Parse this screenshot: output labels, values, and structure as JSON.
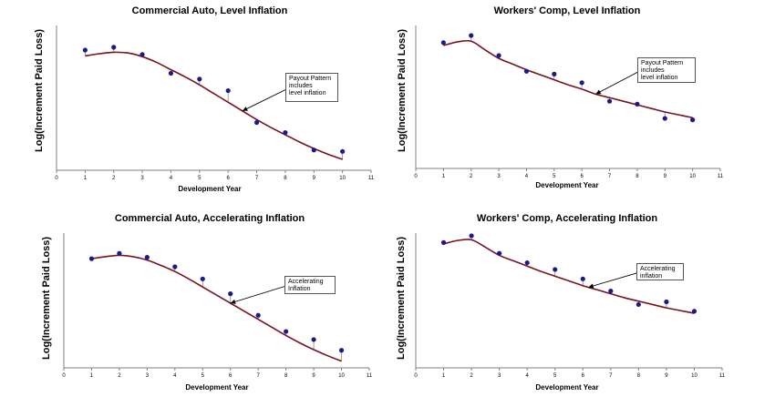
{
  "chart_data": [
    {
      "type": "line",
      "title": "Commercial Auto, Level Inflation",
      "xlabel": "Development Year",
      "ylabel": "Log(Increment Paid Loss)",
      "xlim": [
        0,
        11
      ],
      "ylim": [
        0,
        10
      ],
      "x_ticks": [
        "0",
        "1",
        "2",
        "3",
        "4",
        "5",
        "6",
        "7",
        "8",
        "9",
        "10",
        "11"
      ],
      "series": [
        {
          "role": "actual",
          "x": [
            1,
            2,
            3,
            4,
            5,
            6,
            7,
            8,
            9,
            10
          ],
          "values": [
            8.3,
            8.5,
            8.0,
            6.7,
            6.3,
            5.5,
            3.3,
            2.6,
            1.4,
            1.3
          ]
        },
        {
          "role": "fitted",
          "x": [
            1,
            1.5,
            2,
            2.5,
            3,
            3.5,
            4,
            4.5,
            5,
            5.5,
            6,
            6.5,
            7,
            7.5,
            8,
            8.5,
            9,
            9.5,
            10
          ],
          "values": [
            7.9,
            8.05,
            8.15,
            8.1,
            7.85,
            7.45,
            6.95,
            6.45,
            5.9,
            5.3,
            4.7,
            4.1,
            3.5,
            2.95,
            2.45,
            1.95,
            1.5,
            1.1,
            0.75
          ]
        }
      ],
      "annotation": {
        "lines": [
          "Payout Pattern",
          "includes",
          "level inflation"
        ],
        "x": 6.5,
        "y": 4.0
      }
    },
    {
      "type": "line",
      "title": "Workers' Comp, Level Inflation",
      "xlabel": "Development Year",
      "ylabel": "Log(Increment Paid Loss)",
      "xlim": [
        0,
        11
      ],
      "ylim": [
        0,
        10
      ],
      "x_ticks": [
        "0",
        "1",
        "2",
        "3",
        "4",
        "5",
        "6",
        "7",
        "8",
        "9",
        "10",
        "11"
      ],
      "series": [
        {
          "role": "actual",
          "x": [
            1,
            2,
            3,
            4,
            5,
            6,
            7,
            8,
            9,
            10
          ],
          "values": [
            8.8,
            9.3,
            7.9,
            6.8,
            6.6,
            6.0,
            4.7,
            4.5,
            3.5,
            3.4
          ]
        },
        {
          "role": "fitted",
          "x": [
            1,
            1.5,
            2,
            2.5,
            3,
            3.5,
            4,
            4.5,
            5,
            5.5,
            6,
            6.5,
            7,
            7.5,
            8,
            8.5,
            9,
            9.5,
            10
          ],
          "values": [
            8.6,
            8.85,
            8.9,
            8.3,
            7.7,
            7.3,
            6.9,
            6.55,
            6.2,
            5.85,
            5.55,
            5.2,
            4.95,
            4.7,
            4.45,
            4.2,
            3.95,
            3.75,
            3.55
          ]
        }
      ],
      "annotation": {
        "lines": [
          "Payout Pattern",
          "includes",
          "level inflation"
        ],
        "x": 6.5,
        "y": 5.5
      }
    },
    {
      "type": "line",
      "title": "Commercial Auto, Accelerating Inflation",
      "xlabel": "Development Year",
      "ylabel": "Log(Increment Paid Loss)",
      "xlim": [
        0,
        11
      ],
      "ylim": [
        0,
        10
      ],
      "x_ticks": [
        "0",
        "1",
        "2",
        "3",
        "4",
        "5",
        "6",
        "7",
        "8",
        "9",
        "10",
        "11"
      ],
      "series": [
        {
          "role": "actual",
          "x": [
            1,
            2,
            3,
            4,
            5,
            6,
            7,
            8,
            9,
            10
          ],
          "values": [
            8.1,
            8.5,
            8.2,
            7.5,
            6.6,
            5.5,
            3.9,
            2.7,
            2.1,
            1.3
          ]
        },
        {
          "role": "fitted",
          "x": [
            1,
            1.5,
            2,
            2.5,
            3,
            3.5,
            4,
            4.5,
            5,
            5.5,
            6,
            6.5,
            7,
            7.5,
            8,
            8.5,
            9,
            9.5,
            10
          ],
          "values": [
            8.1,
            8.25,
            8.35,
            8.25,
            8.0,
            7.6,
            7.15,
            6.6,
            6.0,
            5.4,
            4.8,
            4.2,
            3.6,
            3.0,
            2.4,
            1.85,
            1.35,
            0.9,
            0.5
          ]
        }
      ],
      "annotation": {
        "lines": [
          "Accelerating",
          "Inflation"
        ],
        "x": 6.0,
        "y": 5.6
      }
    },
    {
      "type": "line",
      "title": "Workers' Comp, Accelerating Inflation",
      "xlabel": "Development Year",
      "ylabel": "Log(Increment Paid Loss)",
      "xlim": [
        0,
        11
      ],
      "ylim": [
        0,
        10
      ],
      "x_ticks": [
        "0",
        "1",
        "2",
        "3",
        "4",
        "5",
        "6",
        "7",
        "8",
        "9",
        "10",
        "11"
      ],
      "series": [
        {
          "role": "actual",
          "x": [
            1,
            2,
            3,
            4,
            5,
            6,
            7,
            8,
            9,
            10
          ],
          "values": [
            9.3,
            9.8,
            8.5,
            7.8,
            7.3,
            6.6,
            5.7,
            4.7,
            4.9,
            4.2
          ]
        },
        {
          "role": "fitted",
          "x": [
            1,
            1.5,
            2,
            2.5,
            3,
            3.5,
            4,
            4.5,
            5,
            5.5,
            6,
            6.5,
            7,
            7.5,
            8,
            8.5,
            9,
            9.5,
            10
          ],
          "values": [
            9.2,
            9.45,
            9.5,
            8.95,
            8.35,
            7.95,
            7.55,
            7.15,
            6.8,
            6.45,
            6.1,
            5.8,
            5.5,
            5.2,
            4.95,
            4.7,
            4.45,
            4.25,
            4.05
          ]
        }
      ],
      "annotation": {
        "lines": [
          "Accelerating",
          "inflation"
        ],
        "x": 6.2,
        "y": 6.6
      }
    }
  ],
  "colors": {
    "fit_line": "#7a1020",
    "point": "#1a1a8c",
    "arrow": "#000000",
    "axis": "#7f7f7f"
  }
}
